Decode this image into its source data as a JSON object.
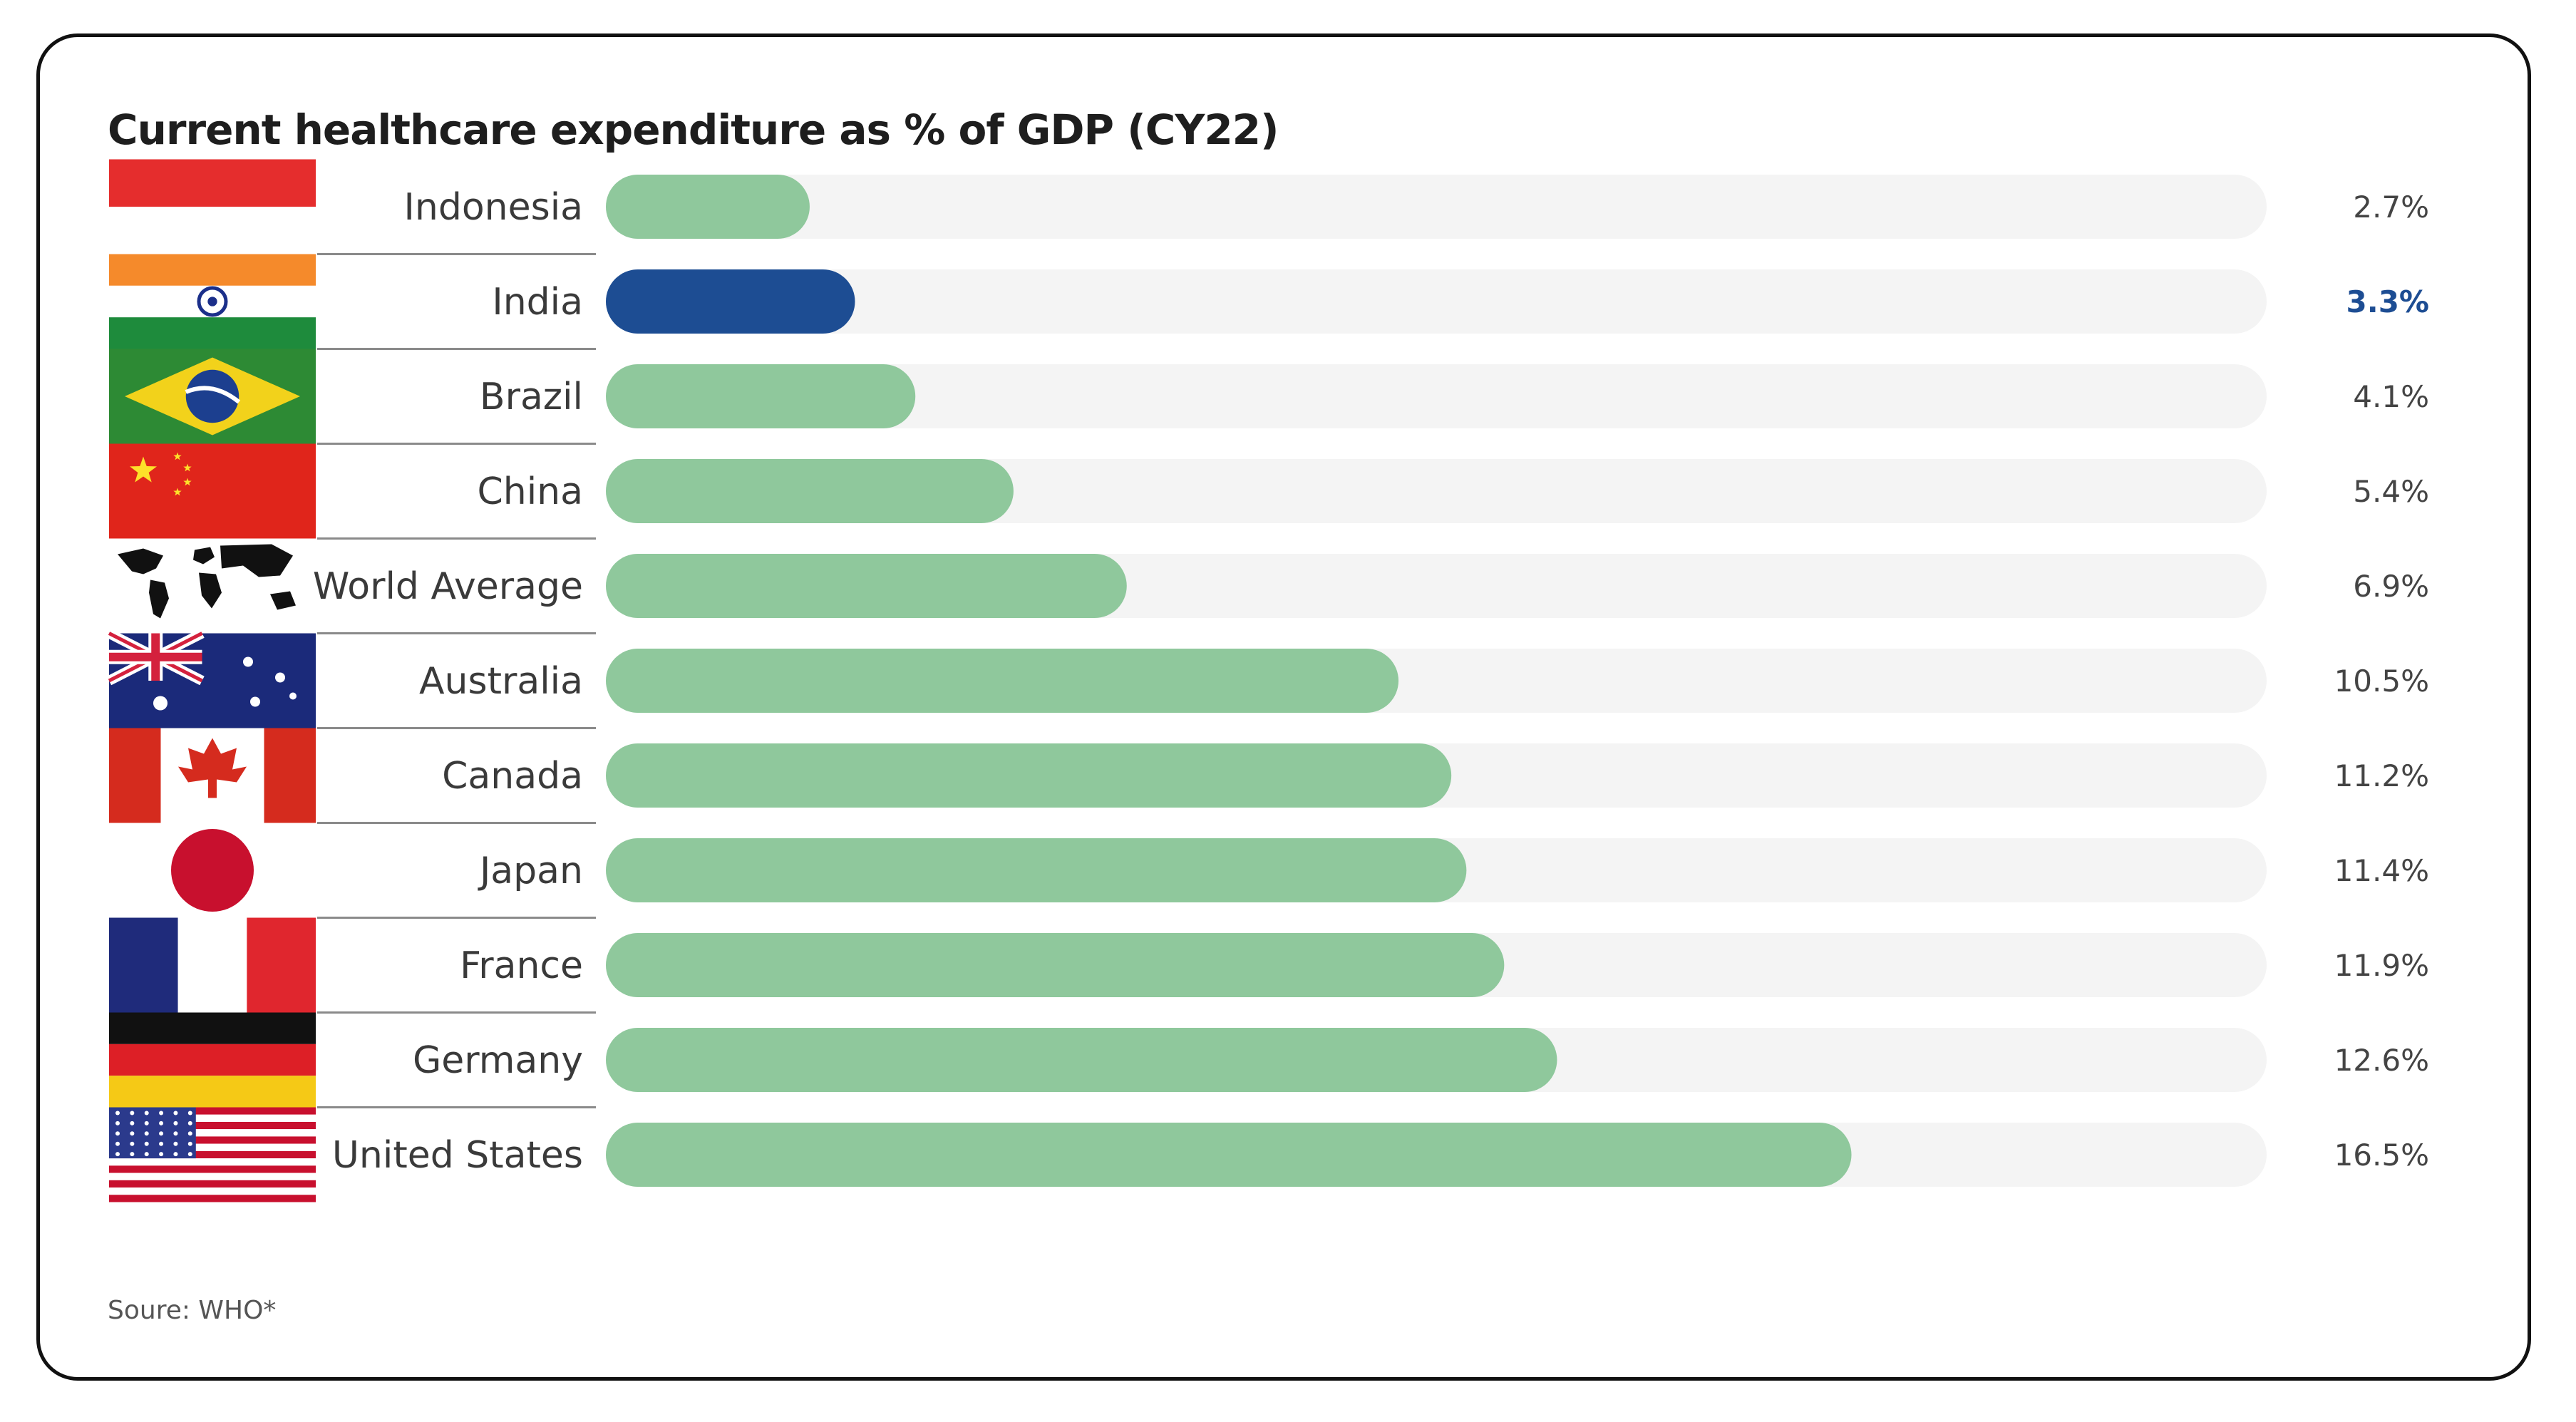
{
  "chart_data": {
    "type": "bar",
    "orientation": "horizontal",
    "title": "Current healthcare expenditure as % of GDP (CY22)",
    "source": "Soure: WHO*",
    "xlim": [
      0,
      22
    ],
    "categories": [
      "Indonesia",
      "India",
      "Brazil",
      "China",
      "World Average",
      "Australia",
      "Canada",
      "Japan",
      "France",
      "Germany",
      "United States"
    ],
    "values": [
      2.7,
      3.3,
      4.1,
      5.4,
      6.9,
      10.5,
      11.2,
      11.4,
      11.9,
      12.6,
      16.5
    ],
    "value_labels": [
      "2.7%",
      "3.3%",
      "4.1%",
      "5.4%",
      "6.9%",
      "10.5%",
      "11.2%",
      "11.4%",
      "11.9%",
      "12.6%",
      "16.5%"
    ],
    "flags": [
      "indonesia-flag",
      "india-flag",
      "brazil-flag",
      "china-flag",
      "world-map",
      "australia-flag",
      "canada-flag",
      "japan-flag",
      "france-flag",
      "germany-flag",
      "usa-flag"
    ],
    "highlight": "India",
    "colors": {
      "bar": "#8fc89c",
      "highlight_bar": "#1d4d93",
      "track": "#f4f4f4",
      "separator": "#8a8a8a"
    }
  }
}
